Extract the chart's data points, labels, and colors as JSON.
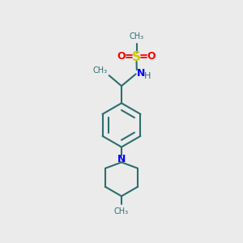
{
  "background_color": "#ebebeb",
  "bond_color": "#2d6e6e",
  "bond_width": 1.5,
  "S_color": "#cccc00",
  "O_color": "#ff0000",
  "N_color": "#0000ff",
  "figsize": [
    3.0,
    3.0
  ],
  "dpi": 100,
  "xlim": [
    0,
    10
  ],
  "ylim": [
    0,
    10
  ]
}
